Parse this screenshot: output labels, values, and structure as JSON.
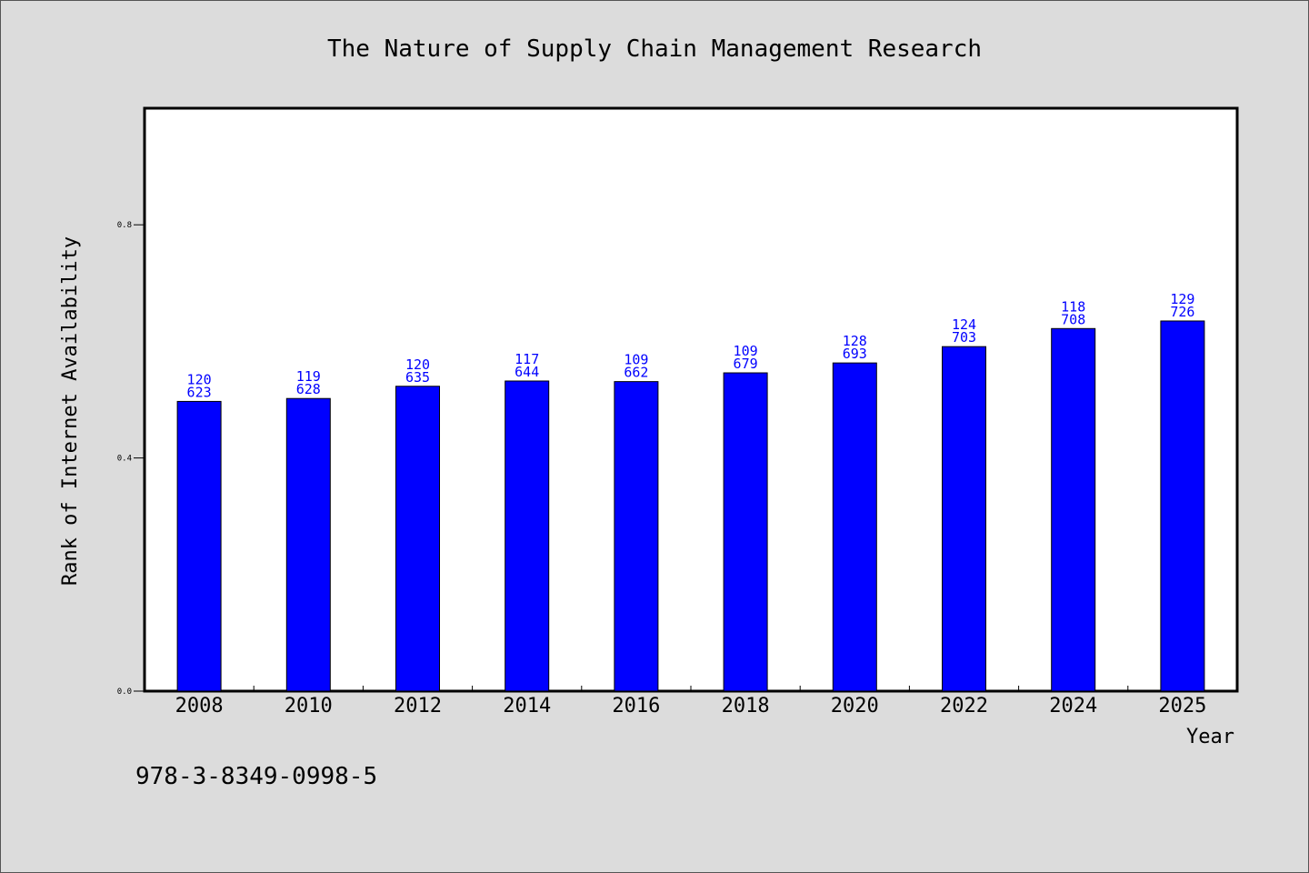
{
  "chart_data": {
    "type": "bar",
    "title": "The Nature of Supply Chain Management Research",
    "xlabel": "Year",
    "ylabel": "Rank of Internet Availability",
    "categories": [
      "2008",
      "2010",
      "2012",
      "2014",
      "2016",
      "2018",
      "2020",
      "2022",
      "2024",
      "2025"
    ],
    "values": [
      0.497,
      0.502,
      0.523,
      0.532,
      0.531,
      0.546,
      0.563,
      0.591,
      0.622,
      0.635
    ],
    "bar_labels": [
      [
        "120",
        "623"
      ],
      [
        "119",
        "628"
      ],
      [
        "120",
        "635"
      ],
      [
        "117",
        "644"
      ],
      [
        "109",
        "662"
      ],
      [
        "109",
        "679"
      ],
      [
        "128",
        "693"
      ],
      [
        "124",
        "703"
      ],
      [
        "118",
        "708"
      ],
      [
        "129",
        "726"
      ]
    ],
    "yticks": [
      "0.0",
      "0.4",
      "0.8"
    ],
    "ytick_values": [
      0.0,
      0.4,
      0.8
    ],
    "ylim": [
      0.0,
      1.0
    ],
    "bar_color": "#0000ff",
    "grid": false,
    "legend": "none"
  },
  "footer": {
    "isbn": "978-3-8349-0998-5"
  }
}
